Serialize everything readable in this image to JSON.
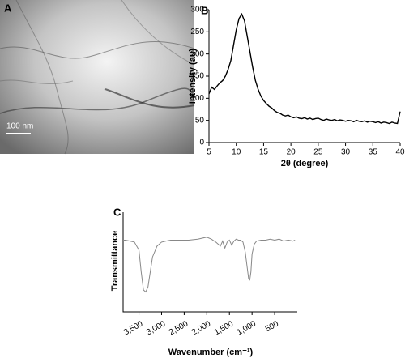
{
  "image_panel": {
    "label": "A",
    "scale_bar": "100 nm"
  },
  "chart_data": [
    {
      "type": "line",
      "panel_label": "B",
      "xlabel": "2θ (degree)",
      "ylabel": "Intensity (au)",
      "color": "#000000",
      "x": [
        5,
        5.5,
        6,
        6.5,
        7,
        7.5,
        8,
        8.5,
        9,
        9.5,
        10,
        10.5,
        11,
        11.5,
        12,
        12.5,
        13,
        13.5,
        14,
        14.5,
        15,
        15.5,
        16,
        16.5,
        17,
        17.5,
        18,
        18.5,
        19,
        19.5,
        20,
        20.5,
        21,
        21.5,
        22,
        22.5,
        23,
        23.5,
        24,
        24.5,
        25,
        25.5,
        26,
        26.5,
        27,
        27.5,
        28,
        28.5,
        29,
        29.5,
        30,
        30.5,
        31,
        31.5,
        32,
        32.5,
        33,
        33.5,
        34,
        34.5,
        35,
        35.5,
        36,
        36.5,
        37,
        37.5,
        38,
        38.5,
        39,
        39.5,
        40
      ],
      "values": [
        110,
        125,
        120,
        128,
        135,
        140,
        150,
        165,
        185,
        220,
        255,
        280,
        290,
        275,
        240,
        205,
        170,
        140,
        120,
        105,
        95,
        88,
        82,
        78,
        72,
        68,
        66,
        62,
        60,
        62,
        58,
        56,
        58,
        55,
        54,
        56,
        53,
        55,
        52,
        54,
        55,
        52,
        50,
        53,
        51,
        50,
        52,
        49,
        51,
        50,
        48,
        50,
        49,
        47,
        50,
        48,
        47,
        49,
        46,
        48,
        47,
        45,
        47,
        44,
        46,
        45,
        43,
        46,
        44,
        43,
        70
      ],
      "xlim": [
        5,
        40
      ],
      "ylim": [
        0,
        300
      ],
      "xticks": [
        5,
        10,
        15,
        20,
        25,
        30,
        35,
        40
      ],
      "yticks": [
        0,
        50,
        100,
        150,
        200,
        250,
        300
      ]
    },
    {
      "type": "line",
      "panel_label": "C",
      "xlabel": "Wavenumber (cm⁻¹)",
      "ylabel": "Transmittance",
      "color": "#888888",
      "x": [
        3850,
        3800,
        3700,
        3600,
        3500,
        3450,
        3400,
        3350,
        3300,
        3250,
        3200,
        3100,
        3000,
        2900,
        2800,
        2600,
        2400,
        2200,
        2100,
        2000,
        1900,
        1800,
        1750,
        1700,
        1650,
        1600,
        1550,
        1500,
        1450,
        1400,
        1350,
        1300,
        1250,
        1200,
        1150,
        1100,
        1075,
        1050,
        1025,
        1000,
        950,
        900,
        800,
        700,
        600,
        500,
        400,
        300,
        200,
        100,
        50
      ],
      "values": [
        72,
        72,
        71,
        70,
        62,
        40,
        22,
        20,
        25,
        40,
        55,
        66,
        70,
        71,
        72,
        72,
        72,
        73,
        74,
        75,
        73,
        70,
        68,
        66,
        71,
        64,
        70,
        72,
        67,
        71,
        73,
        72,
        72,
        70,
        60,
        42,
        33,
        32,
        40,
        58,
        68,
        71,
        72,
        72,
        73,
        72,
        73,
        71,
        72,
        71,
        72
      ],
      "xlim": [
        3850,
        0
      ],
      "ylim": [
        0,
        100
      ],
      "xticks": [
        {
          "value": 3500,
          "label": "3,500"
        },
        {
          "value": 3000,
          "label": "3,000"
        },
        {
          "value": 2500,
          "label": "2,500"
        },
        {
          "value": 2000,
          "label": "2,000"
        },
        {
          "value": 1500,
          "label": "1,500"
        },
        {
          "value": 1000,
          "label": "1,000"
        },
        500
      ]
    }
  ]
}
